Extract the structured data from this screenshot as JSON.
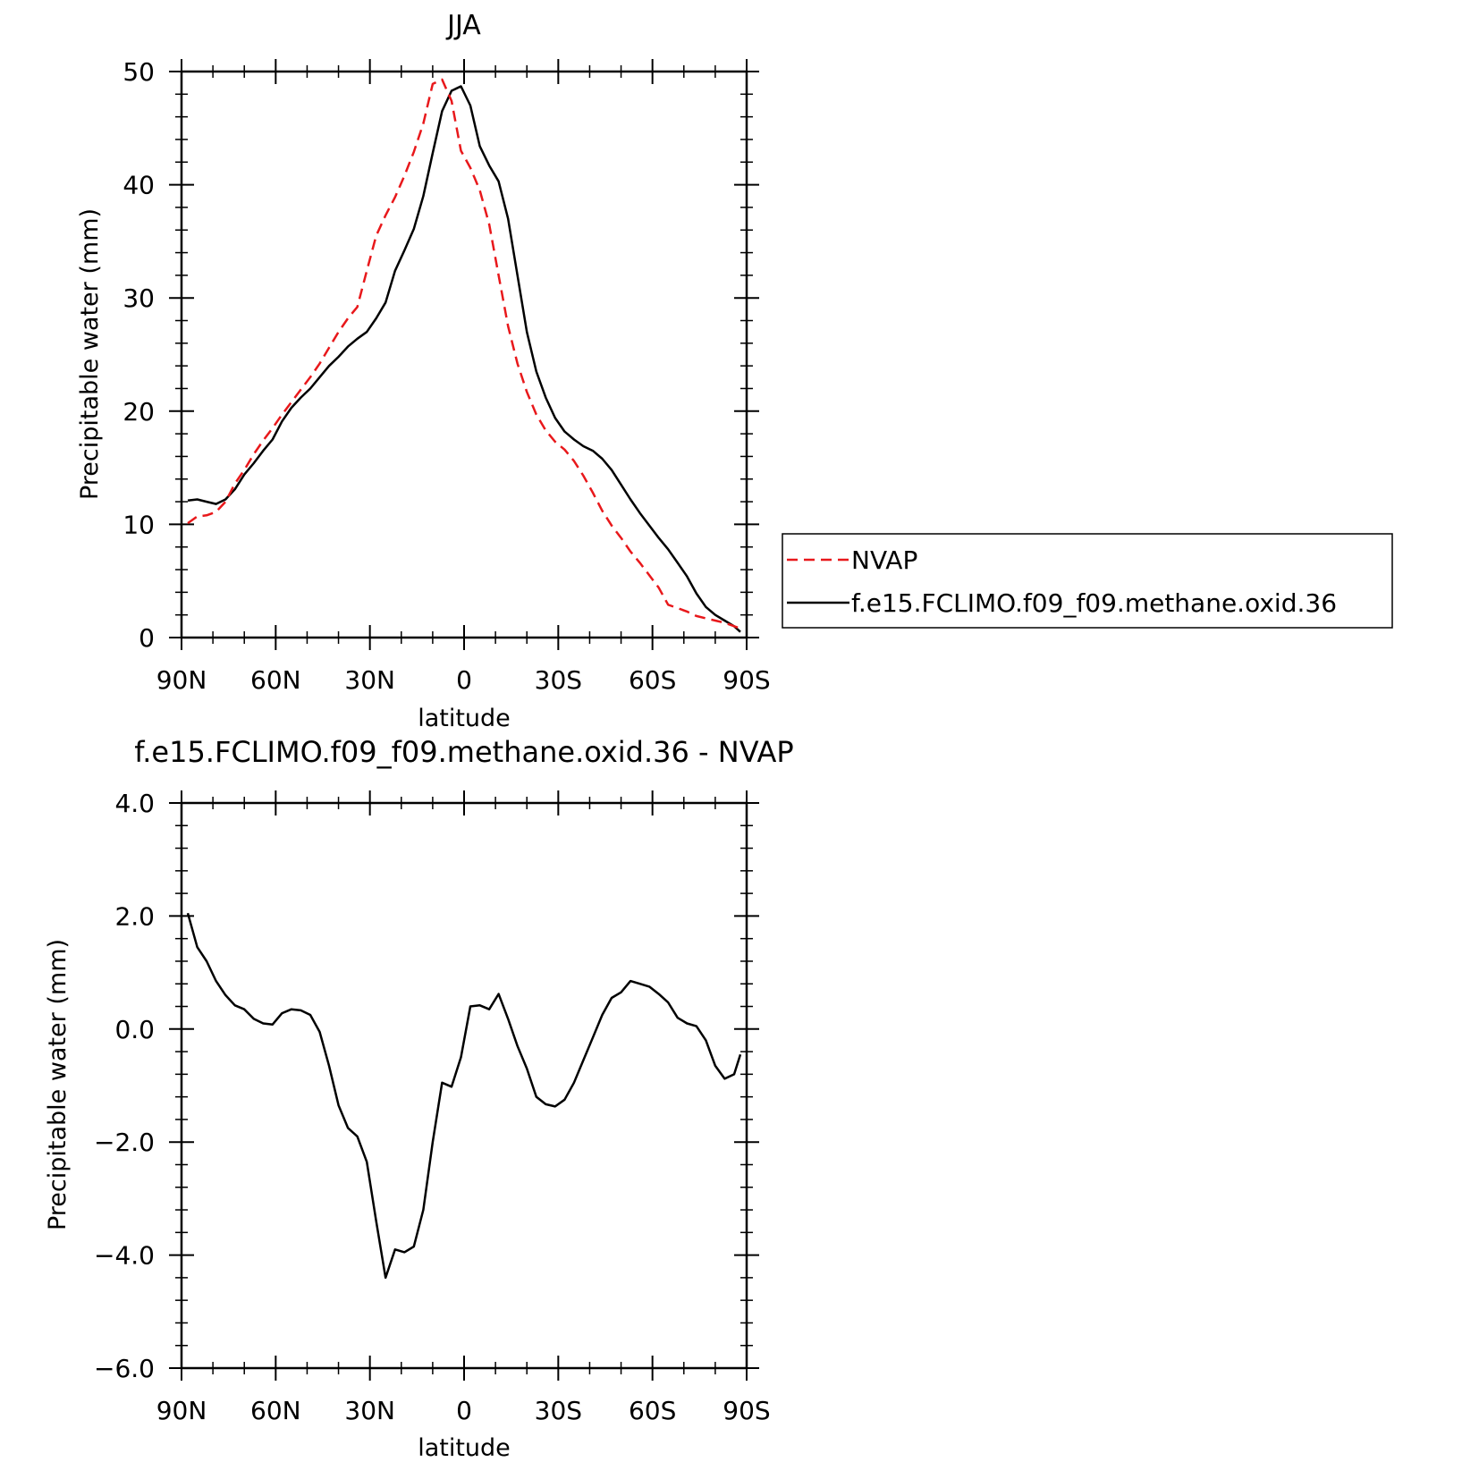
{
  "chart_data": [
    {
      "type": "line",
      "title": "JJA",
      "xlabel": "latitude",
      "ylabel": "Precipitable water (mm)",
      "xlim": [
        90,
        -90
      ],
      "ylim": [
        0,
        50
      ],
      "x_ticks": [
        90,
        60,
        30,
        0,
        -30,
        -60,
        -90
      ],
      "x_tick_labels": [
        "90N",
        "60N",
        "30N",
        "0",
        "30S",
        "60S",
        "90S"
      ],
      "y_ticks": [
        0,
        10,
        20,
        30,
        40,
        50
      ],
      "y_tick_labels": [
        "0",
        "10",
        "20",
        "30",
        "40",
        "50"
      ],
      "legend_position": "right",
      "grid": false,
      "series": [
        {
          "name": "NVAP",
          "color": "#e8181b",
          "style": "dashed",
          "x": [
            88,
            85,
            82,
            79,
            76,
            73,
            70,
            67,
            64,
            61,
            58,
            55,
            52,
            49,
            46,
            43,
            40,
            37,
            34,
            31,
            28,
            25,
            22,
            19,
            16,
            13,
            10,
            7,
            4,
            1,
            -2,
            -5,
            -8,
            -11,
            -14,
            -17,
            -20,
            -23,
            -26,
            -29,
            -32,
            -35,
            -38,
            -41,
            -44,
            -47,
            -50,
            -53,
            -56,
            -59,
            -62,
            -65,
            -68,
            -71,
            -74,
            -77,
            -80,
            -83,
            -86,
            -88
          ],
          "values": [
            10.1,
            10.7,
            10.8,
            11.1,
            12.0,
            13.6,
            14.8,
            16.2,
            17.4,
            18.5,
            19.7,
            20.8,
            21.9,
            23.0,
            24.2,
            25.6,
            27.0,
            28.2,
            29.2,
            32.4,
            35.5,
            37.3,
            38.9,
            40.8,
            42.9,
            45.4,
            48.9,
            49.3,
            47.4,
            43.0,
            41.5,
            39.5,
            36.5,
            32.0,
            27.5,
            24.2,
            21.7,
            19.7,
            18.3,
            17.3,
            16.6,
            15.6,
            14.3,
            12.8,
            11.2,
            9.9,
            8.8,
            7.6,
            6.6,
            5.5,
            4.4,
            2.9,
            2.6,
            2.3,
            1.9,
            1.7,
            1.5,
            1.3,
            1.0,
            0.8
          ]
        },
        {
          "name": "f.e15.FCLIMO.f09_f09.methane.oxid.36",
          "color": "#000000",
          "style": "solid",
          "x": [
            88,
            85,
            82,
            79,
            76,
            73,
            70,
            67,
            64,
            61,
            58,
            55,
            52,
            49,
            46,
            43,
            40,
            37,
            34,
            31,
            28,
            25,
            22,
            19,
            16,
            13,
            10,
            7,
            4,
            1,
            -2,
            -5,
            -8,
            -11,
            -14,
            -17,
            -20,
            -23,
            -26,
            -29,
            -32,
            -35,
            -38,
            -41,
            -44,
            -47,
            -50,
            -53,
            -56,
            -59,
            -62,
            -65,
            -68,
            -71,
            -74,
            -77,
            -80,
            -83,
            -86,
            -88
          ],
          "values": [
            12.1,
            12.2,
            12.0,
            11.8,
            12.2,
            13.1,
            14.4,
            15.4,
            16.5,
            17.5,
            19.1,
            20.3,
            21.2,
            22.0,
            23.0,
            24.0,
            24.8,
            25.7,
            26.4,
            27.0,
            28.2,
            29.6,
            32.4,
            34.2,
            36.1,
            39.0,
            42.8,
            46.5,
            48.3,
            48.7,
            47.0,
            43.4,
            41.7,
            40.3,
            37.0,
            32.0,
            27.0,
            23.5,
            21.2,
            19.4,
            18.2,
            17.5,
            16.9,
            16.5,
            15.8,
            14.8,
            13.5,
            12.2,
            11.0,
            9.9,
            8.8,
            7.8,
            6.6,
            5.4,
            3.9,
            2.7,
            2.0,
            1.5,
            1.0,
            0.5
          ]
        }
      ]
    },
    {
      "type": "line",
      "title": "f.e15.FCLIMO.f09_f09.methane.oxid.36 - NVAP",
      "xlabel": "latitude",
      "ylabel": "Precipitable water (mm)",
      "xlim": [
        90,
        -90
      ],
      "ylim": [
        -6.0,
        4.0
      ],
      "x_ticks": [
        90,
        60,
        30,
        0,
        -30,
        -60,
        -90
      ],
      "x_tick_labels": [
        "90N",
        "60N",
        "30N",
        "0",
        "30S",
        "60S",
        "90S"
      ],
      "y_ticks": [
        4.0,
        2.0,
        0.0,
        -2.0,
        -4.0,
        -6.0
      ],
      "y_tick_labels": [
        "4.0",
        "2.0",
        "0.0",
        "−2.0",
        "−4.0",
        "−6.0"
      ],
      "grid": false,
      "series": [
        {
          "color": "#000000",
          "style": "solid",
          "x": [
            88,
            85,
            82,
            79,
            76,
            73,
            70,
            67,
            64,
            61,
            58,
            55,
            52,
            49,
            46,
            43,
            40,
            37,
            34,
            31,
            28,
            25,
            22,
            19,
            16,
            13,
            10,
            7,
            4,
            1,
            -2,
            -5,
            -8,
            -11,
            -14,
            -17,
            -20,
            -23,
            -26,
            -29,
            -32,
            -35,
            -38,
            -41,
            -44,
            -47,
            -50,
            -53,
            -56,
            -59,
            -62,
            -65,
            -68,
            -71,
            -74,
            -77,
            -80,
            -83,
            -86,
            -88
          ],
          "values": [
            2.05,
            1.45,
            1.2,
            0.85,
            0.6,
            0.42,
            0.35,
            0.18,
            0.1,
            0.08,
            0.28,
            0.35,
            0.33,
            0.25,
            -0.05,
            -0.65,
            -1.35,
            -1.75,
            -1.9,
            -2.35,
            -3.4,
            -4.4,
            -3.9,
            -3.95,
            -3.85,
            -3.2,
            -2.0,
            -0.95,
            -1.02,
            -0.5,
            0.4,
            0.42,
            0.35,
            0.62,
            0.18,
            -0.3,
            -0.7,
            -1.2,
            -1.33,
            -1.37,
            -1.25,
            -0.95,
            -0.55,
            -0.15,
            0.25,
            0.55,
            0.65,
            0.85,
            0.8,
            0.75,
            0.62,
            0.47,
            0.2,
            0.1,
            0.05,
            -0.2,
            -0.65,
            -0.88,
            -0.8,
            -0.45
          ]
        }
      ]
    }
  ]
}
